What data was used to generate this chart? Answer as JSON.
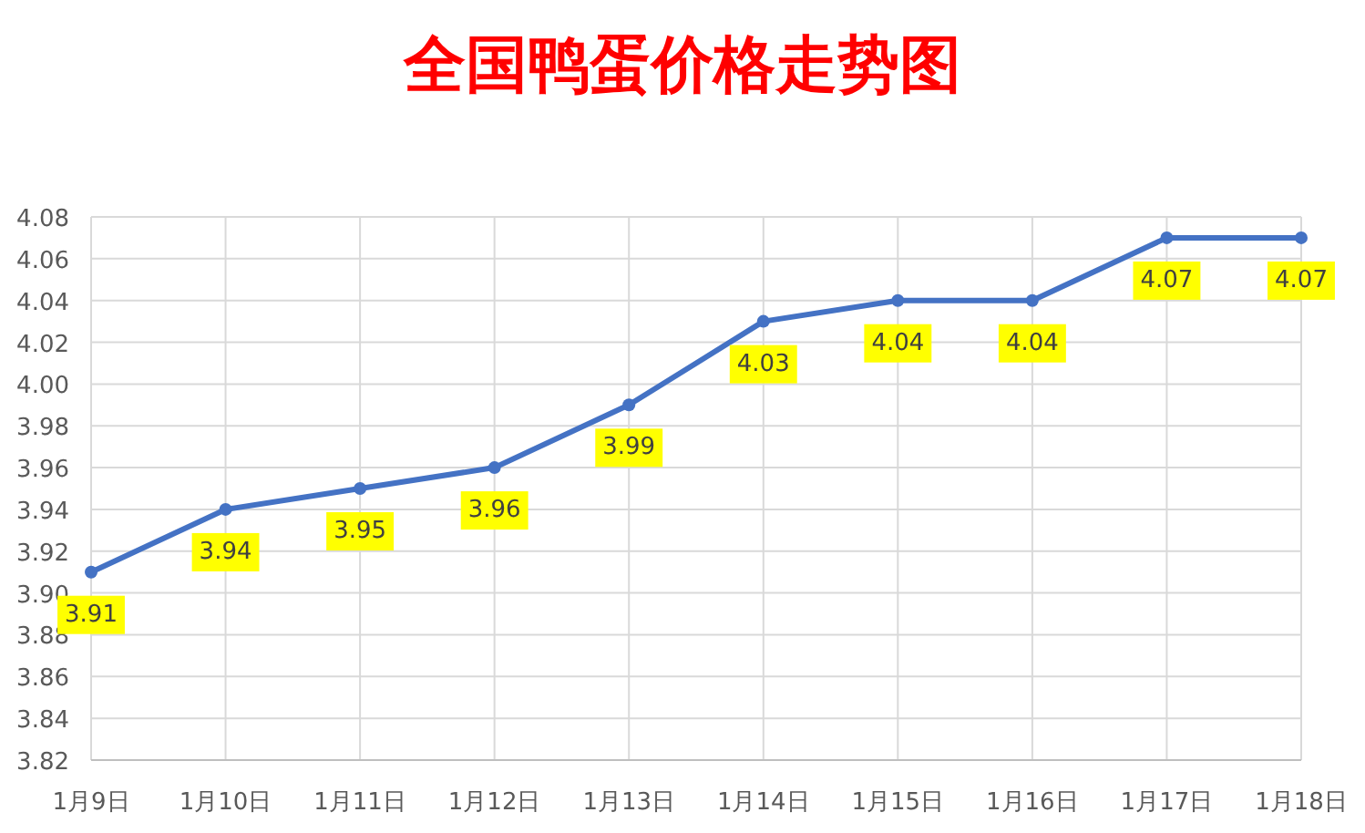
{
  "chart_data": {
    "type": "line",
    "title": "全国鸭蛋价格走势图",
    "categories": [
      "1月9日",
      "1月10日",
      "1月11日",
      "1月12日",
      "1月13日",
      "1月14日",
      "1月15日",
      "1月16日",
      "1月17日",
      "1月18日"
    ],
    "values": [
      3.91,
      3.94,
      3.95,
      3.96,
      3.99,
      4.03,
      4.04,
      4.04,
      4.07,
      4.07
    ],
    "color": "#4472c4",
    "ylim": [
      3.82,
      4.08
    ],
    "yticks": [
      {
        "value": 3.82,
        "label": "3.82"
      },
      {
        "value": 3.84,
        "label": "3.84"
      },
      {
        "value": 3.86,
        "label": "3.86"
      },
      {
        "value": 3.88,
        "label": "3.88"
      },
      {
        "value": 3.9,
        "label": "3.90"
      },
      {
        "value": 3.92,
        "label": "3.92"
      },
      {
        "value": 3.94,
        "label": "3.94"
      },
      {
        "value": 3.96,
        "label": "3.96"
      },
      {
        "value": 3.98,
        "label": "3.98"
      },
      {
        "value": 4.0,
        "label": "4.00"
      },
      {
        "value": 4.02,
        "label": "4.02"
      },
      {
        "value": 4.04,
        "label": "4.04"
      },
      {
        "value": 4.06,
        "label": "4.06"
      },
      {
        "value": 4.08,
        "label": "4.08"
      }
    ],
    "grid": true,
    "marker": "circle",
    "line_style": "solid",
    "data_labels": true
  }
}
